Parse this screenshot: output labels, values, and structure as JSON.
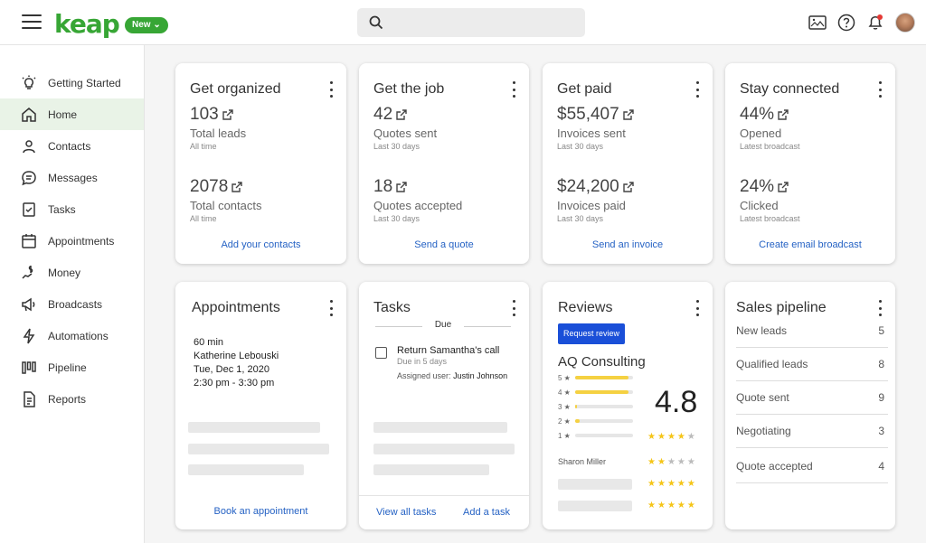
{
  "brand": {
    "logo": "keap",
    "new_badge": "New",
    "accent": "#37a635"
  },
  "search": {
    "placeholder": ""
  },
  "sidebar": {
    "items": [
      {
        "label": "Getting Started",
        "icon": "bulb-icon"
      },
      {
        "label": "Home",
        "icon": "home-icon",
        "active": true
      },
      {
        "label": "Contacts",
        "icon": "contacts-icon"
      },
      {
        "label": "Messages",
        "icon": "messages-icon"
      },
      {
        "label": "Tasks",
        "icon": "tasks-icon"
      },
      {
        "label": "Appointments",
        "icon": "calendar-icon"
      },
      {
        "label": "Money",
        "icon": "money-icon"
      },
      {
        "label": "Broadcasts",
        "icon": "megaphone-icon"
      },
      {
        "label": "Automations",
        "icon": "lightning-icon"
      },
      {
        "label": "Pipeline",
        "icon": "pipeline-icon"
      },
      {
        "label": "Reports",
        "icon": "reports-icon"
      }
    ]
  },
  "cards": {
    "organized": {
      "title": "Get organized",
      "stat1": {
        "value": "103",
        "label": "Total leads",
        "sub": "All time"
      },
      "stat2": {
        "value": "2078",
        "label": "Total contacts",
        "sub": "All time"
      },
      "link": "Add your contacts"
    },
    "job": {
      "title": "Get the job",
      "stat1": {
        "value": "42",
        "label": "Quotes sent",
        "sub": "Last 30 days"
      },
      "stat2": {
        "value": "18",
        "label": "Quotes accepted",
        "sub": "Last 30 days"
      },
      "link": "Send a quote"
    },
    "paid": {
      "title": "Get paid",
      "stat1": {
        "value": "$55,407",
        "label": "Invoices sent",
        "sub": "Last 30 days"
      },
      "stat2": {
        "value": "$24,200",
        "label": "Invoices paid",
        "sub": "Last 30 days"
      },
      "link": "Send an invoice"
    },
    "connected": {
      "title": "Stay connected",
      "stat1": {
        "value": "44%",
        "label": "Opened",
        "sub": "Latest broadcast"
      },
      "stat2": {
        "value": "24%",
        "label": "Clicked",
        "sub": "Latest broadcast"
      },
      "link": "Create email broadcast"
    },
    "appointments": {
      "title": "Appointments",
      "duration": "60 min",
      "name": "Katherine Lebouski",
      "date": "Tue, Dec 1, 2020",
      "time": "2:30 pm - 3:30 pm",
      "link": "Book an appointment"
    },
    "tasks": {
      "title": "Tasks",
      "due_header": "Due",
      "task_title": "Return Samantha's call",
      "task_due": "Due in 5 days",
      "assigned_label": "Assigned user:",
      "assigned_user": "Justin Johnson",
      "link_view": "View all tasks",
      "link_add": "Add a task"
    },
    "reviews": {
      "title": "Reviews",
      "button": "Request review",
      "company": "AQ Consulting",
      "score": "4.8",
      "rating_bars": [
        {
          "star": "5",
          "fill": 0.92
        },
        {
          "star": "4",
          "fill": 0.92
        },
        {
          "star": "3",
          "fill": 0.04
        },
        {
          "star": "2",
          "fill": 0.08
        },
        {
          "star": "1",
          "fill": 0.0
        }
      ],
      "reviews_list": [
        {
          "name": "",
          "stars": 4
        },
        {
          "name": "Sharon Miller",
          "stars": 2
        },
        {
          "name": "",
          "stars": 5
        },
        {
          "name": "",
          "stars": 5
        }
      ],
      "reviewer_name": "Sharon Miller"
    },
    "pipeline": {
      "title": "Sales pipeline",
      "rows": [
        {
          "label": "New leads",
          "count": "5"
        },
        {
          "label": "Qualified leads",
          "count": "8"
        },
        {
          "label": "Quote sent",
          "count": "9"
        },
        {
          "label": "Negotiating",
          "count": "3"
        },
        {
          "label": "Quote accepted",
          "count": "4"
        }
      ]
    }
  }
}
